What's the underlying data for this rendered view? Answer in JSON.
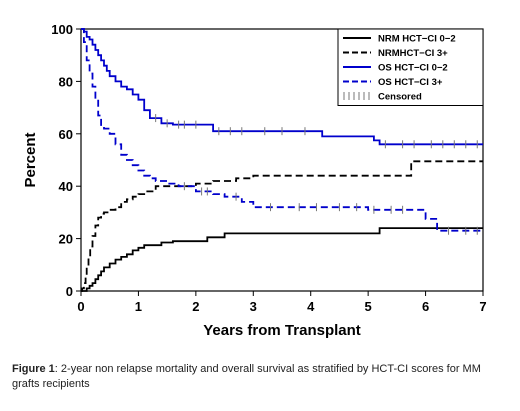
{
  "caption": {
    "label": "Figure 1",
    "text": ": 2-year non relapse mortality and overall survival as stratified by HCT-CI scores for MM grafts recipients"
  },
  "chart_data": {
    "type": "line",
    "title": "",
    "xlabel": "Years from Transplant",
    "ylabel": "Percent",
    "xlim": [
      0,
      7
    ],
    "ylim": [
      0,
      100
    ],
    "x_ticks": [
      "0",
      "1",
      "2",
      "3",
      "4",
      "5",
      "6",
      "7"
    ],
    "y_ticks": [
      "0",
      "20",
      "40",
      "60",
      "80",
      "100"
    ],
    "grid": false,
    "legend_position": "top-right",
    "legend": [
      {
        "label": "NRM HCT−CI 0−2",
        "style": "solid",
        "color": "#000000"
      },
      {
        "label": "NRMHCT−CI 3+",
        "style": "dashed",
        "color": "#000000"
      },
      {
        "label": "OS HCT−CI 0−2",
        "style": "solid",
        "color": "#0000cc"
      },
      {
        "label": "OS HCT−CI 3+",
        "style": "dashed",
        "color": "#0000cc"
      },
      {
        "label": "Censored",
        "style": "censor",
        "color": "#777777"
      }
    ],
    "series": [
      {
        "name": "NRM HCT−CI 0−2",
        "style": "solid",
        "color": "#000000",
        "x": [
          0,
          0.05,
          0.1,
          0.15,
          0.2,
          0.25,
          0.3,
          0.35,
          0.4,
          0.5,
          0.6,
          0.7,
          0.8,
          0.9,
          1.0,
          1.1,
          1.2,
          1.4,
          1.6,
          2.0,
          2.2,
          2.5,
          3.0,
          4.0,
          5.1,
          5.2,
          6.0,
          7.0
        ],
        "y": [
          0,
          0,
          1,
          2,
          3,
          4.5,
          6,
          7.5,
          9,
          10.5,
          12,
          13,
          14,
          15.5,
          16.5,
          17.5,
          17.5,
          18.5,
          19,
          19,
          20.5,
          22,
          22,
          22,
          22,
          24,
          24,
          24
        ]
      },
      {
        "name": "NRMHCT−CI 3+",
        "style": "dashed",
        "color": "#000000",
        "x": [
          0,
          0.02,
          0.05,
          0.08,
          0.1,
          0.13,
          0.16,
          0.2,
          0.25,
          0.3,
          0.35,
          0.4,
          0.5,
          0.6,
          0.7,
          0.8,
          0.9,
          1.0,
          1.1,
          1.3,
          1.6,
          2.0,
          2.3,
          2.7,
          3.0,
          4.0,
          5.0,
          5.7,
          5.75,
          7.0
        ],
        "y": [
          0,
          1,
          3,
          6,
          9,
          13,
          17,
          21,
          25,
          28,
          29.5,
          30,
          31,
          32,
          34,
          35,
          36,
          37,
          38,
          40,
          40,
          41,
          42,
          43,
          44,
          44,
          44,
          44,
          49.5,
          49.5
        ]
      },
      {
        "name": "OS HCT−CI 0−2",
        "style": "solid",
        "color": "#0000cc",
        "x": [
          0,
          0.05,
          0.1,
          0.15,
          0.2,
          0.25,
          0.3,
          0.35,
          0.4,
          0.45,
          0.5,
          0.6,
          0.7,
          0.8,
          0.9,
          1.0,
          1.1,
          1.2,
          1.4,
          1.6,
          2.0,
          2.3,
          2.5,
          3.0,
          4.2,
          5.0,
          5.1,
          5.2,
          6.0,
          7.0
        ],
        "y": [
          100,
          99,
          97,
          96,
          94,
          92,
          90,
          88,
          86,
          84,
          82,
          80,
          78,
          77,
          75,
          73,
          69,
          66,
          64,
          63.5,
          63.5,
          61,
          61,
          61,
          59,
          59,
          57.5,
          56,
          56,
          56
        ]
      },
      {
        "name": "OS HCT−CI 3+",
        "style": "dashed",
        "color": "#0000cc",
        "x": [
          0,
          0.05,
          0.1,
          0.15,
          0.2,
          0.25,
          0.3,
          0.35,
          0.4,
          0.5,
          0.6,
          0.7,
          0.8,
          0.9,
          1.0,
          1.1,
          1.2,
          1.3,
          1.5,
          1.7,
          2.0,
          2.3,
          2.5,
          2.8,
          3.0,
          4.0,
          5.0,
          5.7,
          6.0,
          6.1,
          6.2,
          7.0
        ],
        "y": [
          100,
          95,
          88,
          83,
          78,
          73,
          67,
          63,
          62,
          60,
          56,
          52,
          50,
          48,
          46,
          44,
          43,
          42,
          41,
          40,
          38,
          37,
          36,
          34,
          32,
          32,
          31,
          31,
          27.5,
          27.5,
          23,
          23
        ]
      }
    ],
    "censored": [
      {
        "series": 2,
        "x": [
          1.3,
          1.5,
          1.7,
          1.8,
          2.0,
          2.4,
          2.6,
          2.8,
          3.2,
          3.5,
          3.9,
          5.3,
          5.6,
          5.8,
          6.1,
          6.3,
          6.5,
          6.7,
          6.9
        ]
      },
      {
        "series": 3,
        "x": [
          1.8,
          2.1,
          2.2,
          2.7,
          3.3,
          3.8,
          4.1,
          4.5,
          4.8,
          5.1,
          5.4,
          5.6,
          6.4,
          6.7,
          6.9
        ]
      }
    ]
  }
}
